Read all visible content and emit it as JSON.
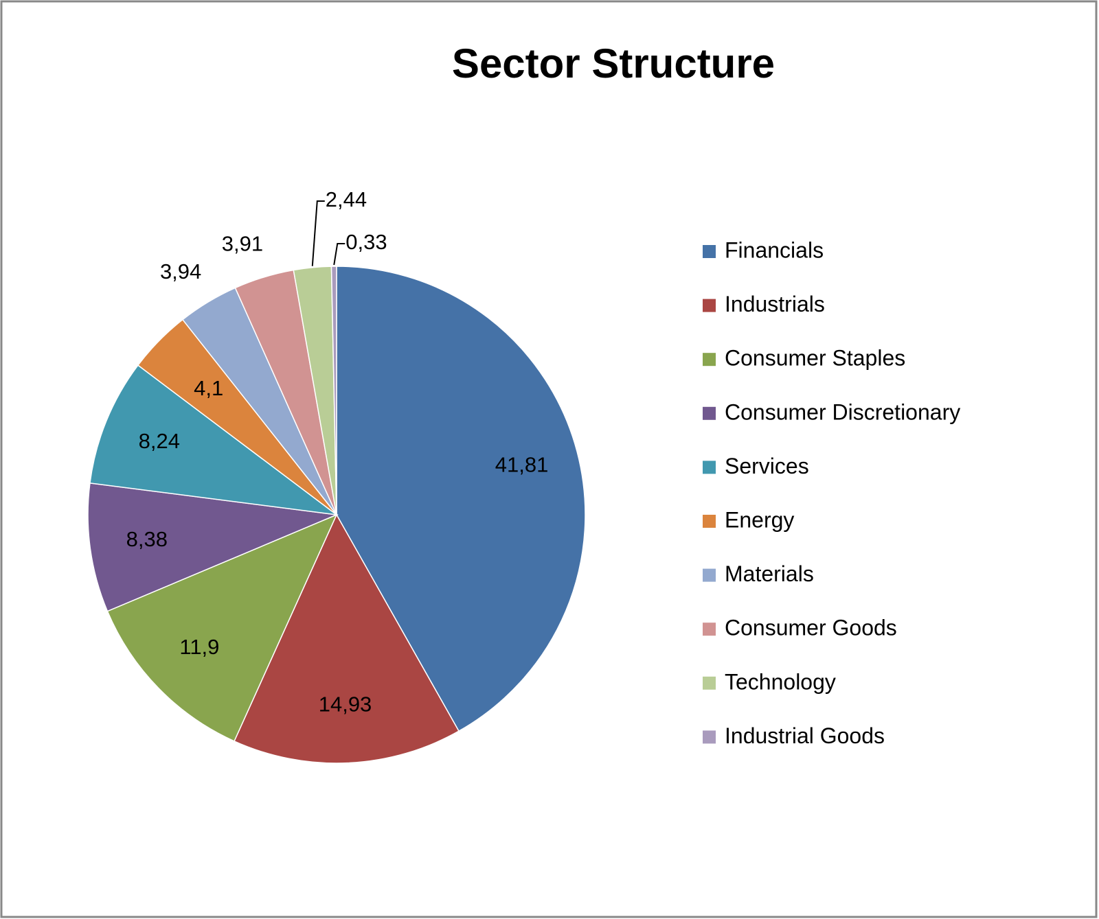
{
  "chart_data": {
    "type": "pie",
    "title": "Sector Structure",
    "categories": [
      "Financials",
      "Industrials",
      "Consumer Staples",
      "Consumer Discretionary",
      "Services",
      "Energy",
      "Materials",
      "Consumer Goods",
      "Technology",
      "Industrial Goods"
    ],
    "values": [
      41.81,
      14.93,
      11.9,
      8.38,
      8.24,
      4.1,
      3.94,
      3.91,
      2.44,
      0.33
    ],
    "value_labels": [
      "41,81",
      "14,93",
      "11,9",
      "8,38",
      "8,24",
      "4,1",
      "3,94",
      "3,91",
      "2,44",
      "0,33"
    ],
    "colors": [
      "#4572a7",
      "#aa4643",
      "#89a54e",
      "#71588f",
      "#4198af",
      "#db843d",
      "#93a9cf",
      "#d19392",
      "#b9cd96",
      "#a99bbd"
    ],
    "legend": "right"
  }
}
